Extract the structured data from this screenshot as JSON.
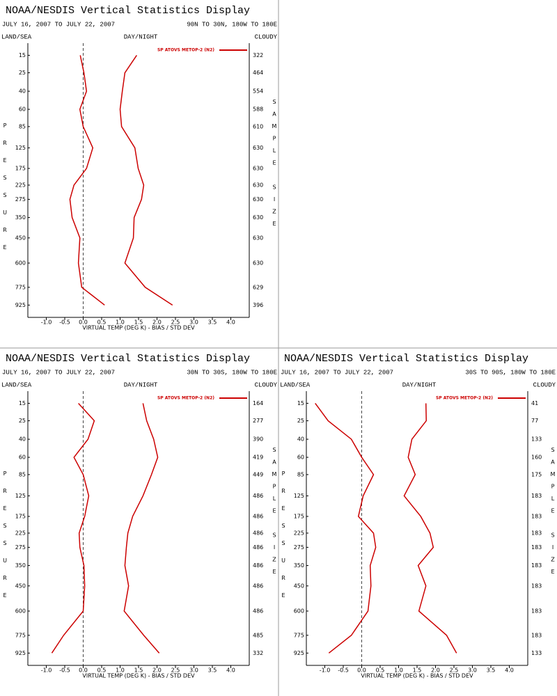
{
  "chart_data": [
    {
      "type": "line",
      "title": "NOAA/NESDIS Vertical Statistics Display",
      "subtitle": "JULY 16, 2007 TO JULY 22, 2007",
      "region": "90N TO 30N, 180W TO 180E",
      "land_sea": "LAND/SEA",
      "day_night": "DAY/NIGHT",
      "cloudy": "CLOUDY",
      "y_label": "PRESSURE",
      "y2_label": "SAMPLE SIZE",
      "x_label": "VIRTUAL TEMP (DEG K) - BIAS / STD DEV",
      "y": [
        15,
        25,
        40,
        60,
        85,
        125,
        175,
        225,
        275,
        350,
        450,
        600,
        775,
        925
      ],
      "y_exponent": 0.286,
      "ylim": [
        10,
        1040
      ],
      "yticks": [
        15,
        25,
        40,
        60,
        85,
        125,
        175,
        225,
        275,
        350,
        450,
        600,
        775,
        925
      ],
      "xlim": [
        -1.5,
        4.5
      ],
      "xticks": [
        {
          "value": -1,
          "label": "-1.0"
        },
        -0.5,
        {
          "value": 0,
          "label": "0.0"
        },
        0.5,
        {
          "value": 1,
          "label": "1.0"
        },
        1.5,
        {
          "value": 2,
          "label": "2.0"
        },
        2.5,
        {
          "value": 3,
          "label": "3.0"
        },
        3.5,
        {
          "value": 4,
          "label": "4.0"
        }
      ],
      "zero_line": 0,
      "sample_size": [
        322,
        464,
        554,
        588,
        610,
        630,
        630,
        630,
        630,
        630,
        630,
        630,
        629,
        396
      ],
      "series": [
        {
          "name": "SP ATOVS METOP-2 (N2)",
          "color": "#cc0000",
          "values": [
            -0.08,
            0.02,
            0.09,
            -0.09,
            0,
            0.26,
            0.09,
            -0.25,
            -0.36,
            -0.3,
            -0.09,
            -0.13,
            -0.04,
            0.58
          ]
        },
        {
          "color": "#cc0000",
          "values": [
            1.45,
            1.13,
            1.06,
            1.0,
            1.04,
            1.4,
            1.49,
            1.64,
            1.58,
            1.38,
            1.36,
            1.13,
            1.68,
            2.42
          ]
        }
      ]
    },
    {
      "type": "line",
      "title": "NOAA/NESDIS Vertical Statistics Display",
      "subtitle": "JULY 16, 2007 TO JULY 22, 2007",
      "region": "30N TO 30S, 180W TO 180E",
      "land_sea": "LAND/SEA",
      "day_night": "DAY/NIGHT",
      "cloudy": "CLOUDY",
      "y_label": "PRESSURE",
      "y2_label": "SAMPLE SIZE",
      "x_label": "VIRTUAL TEMP (DEG K) - BIAS / STD DEV",
      "y": [
        15,
        25,
        40,
        60,
        85,
        125,
        175,
        225,
        275,
        350,
        450,
        600,
        775,
        925
      ],
      "y_exponent": 0.286,
      "ylim": [
        10,
        1040
      ],
      "yticks": [
        15,
        25,
        40,
        60,
        85,
        125,
        175,
        225,
        275,
        350,
        450,
        600,
        775,
        925
      ],
      "xlim": [
        -1.5,
        4.5
      ],
      "xticks": [
        {
          "value": -1,
          "label": "-1.0"
        },
        -0.5,
        {
          "value": 0,
          "label": "0.0"
        },
        0.5,
        {
          "value": 1,
          "label": "1.0"
        },
        1.5,
        {
          "value": 2,
          "label": "2.0"
        },
        2.5,
        {
          "value": 3,
          "label": "3.0"
        },
        3.5,
        {
          "value": 4,
          "label": "4.0"
        }
      ],
      "zero_line": 0,
      "sample_size": [
        164,
        277,
        390,
        419,
        449,
        486,
        486,
        486,
        486,
        486,
        486,
        486,
        485,
        332
      ],
      "series": [
        {
          "name": "SP ATOVS METOP-2 (N2)",
          "color": "#cc0000",
          "values": [
            -0.13,
            0.3,
            0.13,
            -0.25,
            0,
            0.15,
            0.04,
            -0.11,
            -0.09,
            0.02,
            0.04,
            0,
            -0.53,
            -0.85
          ]
        },
        {
          "color": "#cc0000",
          "values": [
            1.62,
            1.72,
            1.91,
            2.02,
            1.85,
            1.62,
            1.34,
            1.21,
            1.17,
            1.13,
            1.23,
            1.11,
            1.64,
            2.06
          ]
        }
      ]
    },
    {
      "type": "line",
      "title": "NOAA/NESDIS Vertical Statistics Display",
      "subtitle": "JULY 16, 2007 TO JULY 22, 2007",
      "region": "30S TO 90S, 180W TO 180E",
      "land_sea": "LAND/SEA",
      "day_night": "DAY/NIGHT",
      "cloudy": "CLOUDY",
      "y_label": "PRESSURE",
      "y2_label": "SAMPLE SIZE",
      "x_label": "VIRTUAL TEMP (DEG K) - BIAS / STD DEV",
      "y": [
        15,
        25,
        40,
        60,
        85,
        125,
        175,
        225,
        275,
        350,
        450,
        600,
        775,
        925
      ],
      "y_exponent": 0.286,
      "ylim": [
        10,
        1040
      ],
      "yticks": [
        15,
        25,
        40,
        60,
        85,
        125,
        175,
        225,
        275,
        350,
        450,
        600,
        775,
        925
      ],
      "xlim": [
        -1.5,
        4.5
      ],
      "xticks": [
        {
          "value": -1,
          "label": "-1.0"
        },
        -0.5,
        {
          "value": 0,
          "label": "0.0"
        },
        0.5,
        {
          "value": 1,
          "label": "1.0"
        },
        1.5,
        {
          "value": 2,
          "label": "2.0"
        },
        2.5,
        {
          "value": 3,
          "label": "3.0"
        },
        3.5,
        {
          "value": 4,
          "label": "4.0"
        }
      ],
      "zero_line": 0,
      "sample_size": [
        41,
        77,
        133,
        160,
        175,
        183,
        183,
        183,
        183,
        183,
        183,
        183,
        183,
        133
      ],
      "series": [
        {
          "name": "SP ATOVS METOP-2 (N2)",
          "color": "#cc0000",
          "values": [
            -1.26,
            -0.91,
            -0.28,
            0,
            0.32,
            0.04,
            -0.09,
            0.32,
            0.38,
            0.23,
            0.25,
            0.17,
            -0.28,
            -0.89
          ]
        },
        {
          "color": "#cc0000",
          "values": [
            1.74,
            1.75,
            1.36,
            1.26,
            1.45,
            1.15,
            1.6,
            1.85,
            1.94,
            1.53,
            1.74,
            1.55,
            2.3,
            2.57
          ]
        }
      ]
    }
  ]
}
